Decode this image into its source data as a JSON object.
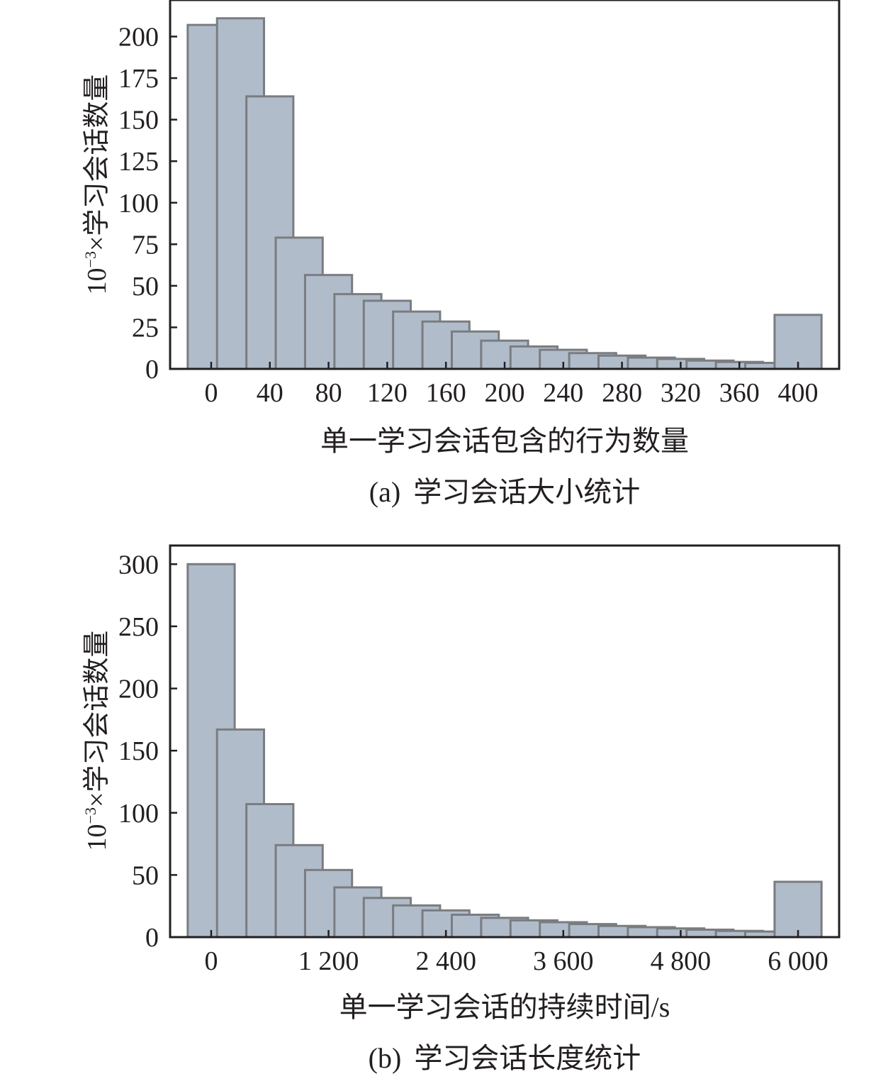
{
  "chart_data": [
    {
      "type": "bar",
      "caption_tag": "(a)",
      "caption_text": "学习会话大小统计",
      "xlabel": "单一学习会话包含的行为数量",
      "ylabel_prefix": "10",
      "ylabel_exp": "−3",
      "ylabel_suffix": "×学习会话数量",
      "x": [
        0,
        20,
        40,
        60,
        80,
        100,
        120,
        140,
        160,
        180,
        200,
        220,
        240,
        260,
        280,
        300,
        320,
        340,
        360,
        380,
        400
      ],
      "values": [
        207,
        211,
        164,
        79,
        56.5,
        45,
        41,
        34.5,
        28.5,
        22.5,
        17,
        13.5,
        11.5,
        9.5,
        8,
        6.8,
        6,
        5,
        4.2,
        3.6,
        32.5
      ],
      "xticks": [
        0,
        40,
        80,
        120,
        160,
        200,
        240,
        280,
        320,
        360,
        400
      ],
      "xtick_labels": [
        "0",
        "40",
        "80",
        "120",
        "160",
        "200",
        "240",
        "280",
        "320",
        "360",
        "400"
      ],
      "yticks": [
        0,
        25,
        50,
        75,
        100,
        125,
        150,
        175,
        200
      ],
      "ytick_labels": [
        "0",
        "25",
        "50",
        "75",
        "100",
        "125",
        "150",
        "175",
        "200"
      ],
      "xlim": [
        -28,
        428
      ],
      "ylim": [
        0,
        222
      ],
      "bar_width": 16,
      "colors": {
        "bar_fill": "#b1bccb",
        "bar_edge": "#7a7d80",
        "axis": "#231f20"
      }
    },
    {
      "type": "bar",
      "caption_tag": "(b)",
      "caption_text": "学习会话长度统计",
      "xlabel": "单一学习会话的持续时间/s",
      "ylabel_prefix": "10",
      "ylabel_exp": "−3",
      "ylabel_suffix": "×学习会话数量",
      "x": [
        0,
        300,
        600,
        900,
        1200,
        1500,
        1800,
        2100,
        2400,
        2700,
        3000,
        3300,
        3600,
        3900,
        4200,
        4500,
        4800,
        5100,
        5400,
        5700,
        6000
      ],
      "values": [
        300,
        167,
        107,
        74,
        54,
        40,
        31.5,
        25.5,
        21.5,
        18,
        15.5,
        13.5,
        12,
        10.5,
        9,
        8,
        7,
        6,
        5,
        4.5,
        44.5
      ],
      "xticks": [
        0,
        1200,
        2400,
        3600,
        4800,
        6000
      ],
      "xtick_labels": [
        "0",
        "1 200",
        "2 400",
        "3 600",
        "4 800",
        "6 000"
      ],
      "yticks": [
        0,
        50,
        100,
        150,
        200,
        250,
        300
      ],
      "ytick_labels": [
        "0",
        "50",
        "100",
        "150",
        "200",
        "250",
        "300"
      ],
      "xlim": [
        -420,
        6420
      ],
      "ylim": [
        0,
        315
      ],
      "bar_width": 240,
      "colors": {
        "bar_fill": "#b1bccb",
        "bar_edge": "#7a7d80",
        "axis": "#231f20"
      }
    }
  ]
}
